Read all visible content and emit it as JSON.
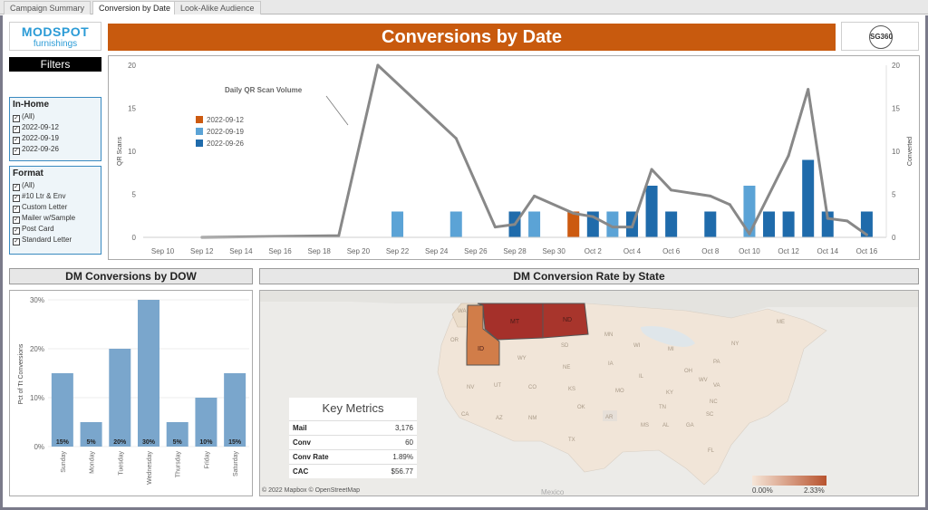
{
  "tabs": [
    {
      "label": "Campaign Summary",
      "active": false
    },
    {
      "label": "Conversion by Date",
      "active": true
    },
    {
      "label": "Look-Alike Audience",
      "active": false
    }
  ],
  "logo": {
    "main": "MODSPOT",
    "sub": "furnishings"
  },
  "badge": {
    "text": "SG360"
  },
  "title": "Conversions by Date",
  "filters": {
    "header": "Filters",
    "in_home": {
      "title": "In-Home",
      "items": [
        "(All)",
        "2022-09-12",
        "2022-09-19",
        "2022-09-26"
      ]
    },
    "format": {
      "title": "Format",
      "items": [
        "(All)",
        "#10 Ltr & Env",
        "Custom Letter",
        "Mailer w/Sample",
        "Post Card",
        "Standard Letter"
      ]
    }
  },
  "colors": {
    "accent": "#c85a0e",
    "sep12": "#cc5a10",
    "sep19": "#5ba3d6",
    "sep26": "#1f6bab",
    "dow_bar": "#7aa6cc",
    "line": "#888888"
  },
  "chart_data": [
    {
      "type": "bar+line",
      "title": "",
      "ylabel_left": "QR Scans",
      "ylabel_right": "Converted",
      "ylim_left": [
        0,
        20
      ],
      "ylim_right": [
        0,
        20
      ],
      "yticks": [
        0,
        5,
        10,
        15,
        20
      ],
      "x_range": [
        "2022-09-09",
        "2022-10-17"
      ],
      "x_ticks": [
        "Sep 10",
        "Sep 12",
        "Sep 14",
        "Sep 16",
        "Sep 18",
        "Sep 20",
        "Sep 22",
        "Sep 24",
        "Sep 26",
        "Sep 28",
        "Sep 30",
        "Oct 2",
        "Oct 4",
        "Oct 6",
        "Oct 8",
        "Oct 10",
        "Oct 12",
        "Oct 14",
        "Oct 16"
      ],
      "annotation": "Daily QR Scan Volume",
      "legend": {
        "placement": "top-left",
        "entries": [
          "2022-09-12",
          "2022-09-19",
          "2022-09-26"
        ]
      },
      "line": {
        "name": "Daily QR Scan Volume",
        "points": [
          {
            "x": "2022-09-12",
            "y": 0
          },
          {
            "x": "2022-09-19",
            "y": 0.2
          },
          {
            "x": "2022-09-21",
            "y": 20
          },
          {
            "x": "2022-09-25",
            "y": 11.5
          },
          {
            "x": "2022-09-27",
            "y": 1.2
          },
          {
            "x": "2022-09-28",
            "y": 1.5
          },
          {
            "x": "2022-09-29",
            "y": 4.8
          },
          {
            "x": "2022-10-01",
            "y": 2.8
          },
          {
            "x": "2022-10-02",
            "y": 2.4
          },
          {
            "x": "2022-10-03",
            "y": 1.2
          },
          {
            "x": "2022-10-04",
            "y": 1.2
          },
          {
            "x": "2022-10-05",
            "y": 7.9
          },
          {
            "x": "2022-10-06",
            "y": 5.5
          },
          {
            "x": "2022-10-08",
            "y": 4.8
          },
          {
            "x": "2022-10-09",
            "y": 3.8
          },
          {
            "x": "2022-10-10",
            "y": 0.4
          },
          {
            "x": "2022-10-12",
            "y": 9.5
          },
          {
            "x": "2022-10-13",
            "y": 17.2
          },
          {
            "x": "2022-10-14",
            "y": 2.2
          },
          {
            "x": "2022-10-15",
            "y": 1.9
          },
          {
            "x": "2022-10-16",
            "y": 0.3
          }
        ]
      },
      "bars": [
        {
          "x": "2022-09-22",
          "y": 3,
          "series": "2022-09-19"
        },
        {
          "x": "2022-09-25",
          "y": 3,
          "series": "2022-09-19"
        },
        {
          "x": "2022-09-28",
          "y": 3,
          "series": "2022-09-26"
        },
        {
          "x": "2022-09-29",
          "y": 3,
          "series": "2022-09-19"
        },
        {
          "x": "2022-10-01",
          "y": 3,
          "series": "2022-09-12"
        },
        {
          "x": "2022-10-02",
          "y": 3,
          "series": "2022-09-26"
        },
        {
          "x": "2022-10-03",
          "y": 3,
          "series": "2022-09-19"
        },
        {
          "x": "2022-10-04",
          "y": 3,
          "series": "2022-09-26"
        },
        {
          "x": "2022-10-05",
          "y": 6,
          "series": "2022-09-26"
        },
        {
          "x": "2022-10-06",
          "y": 3,
          "series": "2022-09-26"
        },
        {
          "x": "2022-10-08",
          "y": 3,
          "series": "2022-09-26"
        },
        {
          "x": "2022-10-10",
          "y": 6,
          "series": "2022-09-19"
        },
        {
          "x": "2022-10-11",
          "y": 3,
          "series": "2022-09-26"
        },
        {
          "x": "2022-10-12",
          "y": 3,
          "series": "2022-09-26"
        },
        {
          "x": "2022-10-13",
          "y": 9,
          "series": "2022-09-26"
        },
        {
          "x": "2022-10-14",
          "y": 3,
          "series": "2022-09-26"
        },
        {
          "x": "2022-10-16",
          "y": 3,
          "series": "2022-09-26"
        }
      ]
    },
    {
      "type": "bar",
      "title": "DM Conversions by DOW",
      "ylabel": "Pct of Tt Conversions",
      "ylim": [
        0,
        30
      ],
      "yticks": [
        "0%",
        "10%",
        "20%",
        "30%"
      ],
      "categories": [
        "Sunday",
        "Monday",
        "Tuesday",
        "Wednesday",
        "Thursday",
        "Friday",
        "Saturday"
      ],
      "values": [
        15,
        5,
        20,
        30,
        5,
        10,
        15
      ],
      "labels": [
        "15%",
        "5%",
        "20%",
        "30%",
        "5%",
        "10%",
        "15%"
      ]
    }
  ],
  "map": {
    "title": "DM Conversion Rate by State",
    "state_labels": [
      "MT",
      "ND",
      "ID",
      "WA",
      "OR",
      "SD",
      "WY",
      "NE",
      "NV",
      "UT",
      "CO",
      "KS",
      "CA",
      "AZ",
      "NM",
      "OK",
      "TX",
      "MN",
      "IA",
      "MO",
      "AR",
      "IL",
      "WI",
      "MI",
      "OH",
      "KY",
      "TN",
      "GA",
      "AL",
      "MS",
      "SC",
      "NC",
      "VA",
      "WV",
      "PA",
      "NY",
      "ME",
      "FL"
    ],
    "attribution": "© 2022 Mapbox © OpenStreetMap",
    "legend_min": "0.00%",
    "legend_max": "2.33%",
    "mexico_label": "Mexico",
    "key_metrics": {
      "title": "Key Metrics",
      "rows": [
        {
          "label": "Mail",
          "value": "3,176"
        },
        {
          "label": "Conv",
          "value": "60"
        },
        {
          "label": "Conv Rate",
          "value": "1.89%"
        },
        {
          "label": "CAC",
          "value": "$56.77"
        }
      ]
    }
  }
}
